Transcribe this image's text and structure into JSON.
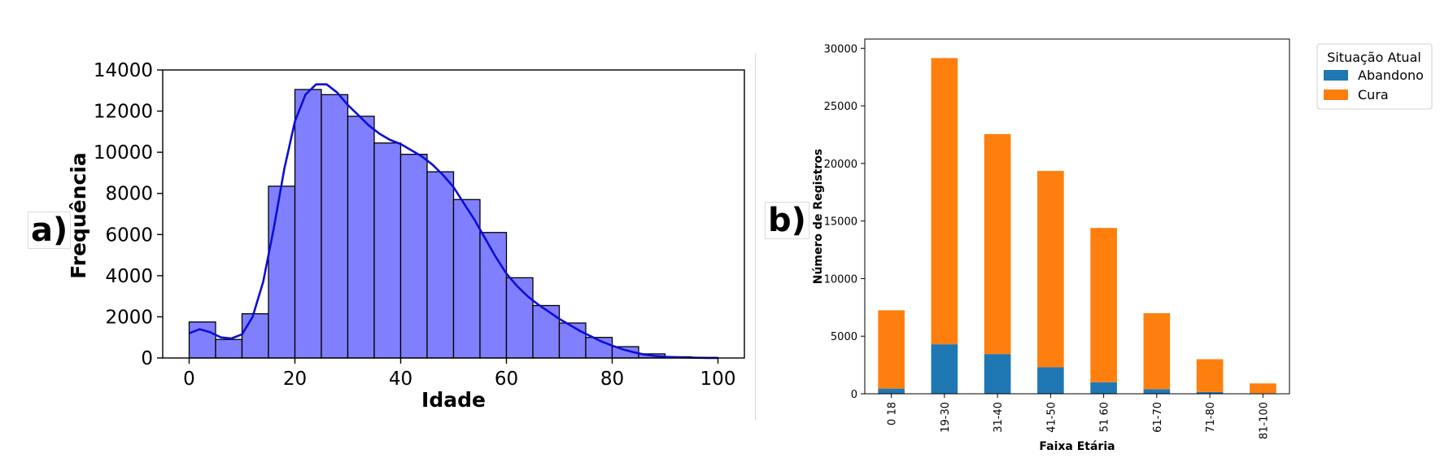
{
  "panels": {
    "a": "a)",
    "b": "b)"
  },
  "chart_data": [
    {
      "type": "bar",
      "subtype": "histogram_with_kde",
      "title": "",
      "xlabel": "Idade",
      "ylabel": "Frequência",
      "xlim": [
        -5,
        105
      ],
      "ylim": [
        0,
        14000
      ],
      "xticks": [
        0,
        20,
        40,
        60,
        80,
        100
      ],
      "yticks": [
        0,
        2000,
        4000,
        6000,
        8000,
        10000,
        12000,
        14000
      ],
      "bin_width": 5,
      "bin_starts": [
        0,
        5,
        10,
        15,
        20,
        25,
        30,
        35,
        40,
        45,
        50,
        55,
        60,
        65,
        70,
        75,
        80,
        85,
        90,
        95
      ],
      "values": [
        1750,
        900,
        2150,
        8350,
        13050,
        12800,
        11750,
        10450,
        9900,
        9050,
        7700,
        6100,
        3900,
        2550,
        1700,
        1000,
        550,
        200,
        60,
        20
      ],
      "bar_color": "#8080ff",
      "kde_color": "#0d0dd6",
      "kde": {
        "x": [
          0,
          2,
          4,
          6,
          8,
          10,
          12,
          14,
          16,
          18,
          20,
          22,
          24,
          26,
          28,
          30,
          32,
          34,
          36,
          38,
          40,
          42,
          44,
          46,
          48,
          50,
          52,
          54,
          56,
          58,
          60,
          62,
          64,
          66,
          68,
          70,
          72,
          74,
          76,
          78,
          80,
          82,
          84,
          86,
          88,
          90,
          92,
          94,
          96,
          98,
          100
        ],
        "y": [
          1200,
          1400,
          1250,
          1000,
          950,
          1150,
          2000,
          3700,
          6300,
          9200,
          11500,
          12800,
          13300,
          13300,
          12900,
          12300,
          11800,
          11300,
          10900,
          10600,
          10400,
          10100,
          9800,
          9400,
          8900,
          8300,
          7500,
          6700,
          5800,
          4900,
          4100,
          3500,
          3000,
          2600,
          2250,
          1900,
          1600,
          1300,
          1050,
          800,
          600,
          420,
          280,
          170,
          100,
          60,
          35,
          20,
          10,
          5,
          2
        ]
      }
    },
    {
      "type": "bar",
      "subtype": "stacked",
      "title": "",
      "xlabel": "Faixa Etária",
      "ylabel": "Número de Registros",
      "ylim": [
        0,
        30800
      ],
      "yticks": [
        0,
        5000,
        10000,
        15000,
        20000,
        25000,
        30000
      ],
      "categories": [
        "0 18",
        "19-30",
        "31-40",
        "41-50",
        "51 60",
        "61-70",
        "71-80",
        "81-100"
      ],
      "legend_title": "Situação Atual",
      "legend_position": "outside top-right",
      "series": [
        {
          "name": "Abandono",
          "color": "#1f77b4",
          "values": [
            450,
            4300,
            3450,
            2300,
            1000,
            400,
            150,
            50
          ]
        },
        {
          "name": "Cura",
          "color": "#ff7f0e",
          "values": [
            6800,
            24850,
            19100,
            17050,
            13400,
            6600,
            2850,
            850
          ]
        }
      ]
    }
  ]
}
